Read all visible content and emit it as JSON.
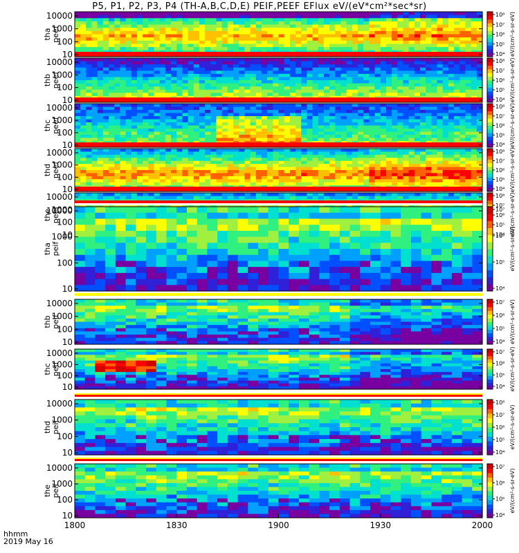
{
  "title": "P5, P1, P2, P3, P4 (TH-A,B,C,D,E) PEIF,PEEF EFlux eV/(eV*cm²*sec*sr)",
  "footer": {
    "time_label": "hhmm",
    "date_label": "2019 May 16"
  },
  "colors": {
    "cmap": [
      "#ffffff",
      "#7800a0",
      "#3020d8",
      "#0050ff",
      "#00a0ff",
      "#00e0d0",
      "#30f080",
      "#a0f040",
      "#ffff00",
      "#ffc000",
      "#ff6000",
      "#ff0000",
      "#d00000"
    ],
    "separator_red": "#ff0000",
    "separator_yellow": "#ffff00"
  },
  "chart_data": {
    "type": "heatmap",
    "x_range": [
      "1800",
      "2000"
    ],
    "x_ticks": [
      "1800",
      "1830",
      "1900",
      "1930",
      "2000"
    ],
    "y_scale": "log",
    "panels": [
      {
        "probe": "tha",
        "product": "peef",
        "y_ticks": [
          "10",
          "100",
          "1000",
          "10000"
        ],
        "cbar_ticks": [
          "10⁴",
          "10⁵",
          "10⁶",
          "10⁷",
          "10⁸"
        ],
        "cbar_label": "eV/(cm²-s-sr-eV)"
      },
      {
        "probe": "thb",
        "product": "peef",
        "y_ticks": [
          "10",
          "100",
          "1000",
          "10000"
        ],
        "cbar_ticks": [
          "10⁴",
          "10⁵",
          "10⁶",
          "10⁷",
          "10⁸"
        ],
        "cbar_label": "eV/(cm²-s-sr-eV)"
      },
      {
        "probe": "thc",
        "product": "peef",
        "y_ticks": [
          "10",
          "100",
          "1000",
          "10000"
        ],
        "cbar_ticks": [
          "10⁴",
          "10⁵",
          "10⁶",
          "10⁷",
          "10⁸"
        ],
        "cbar_label": "eV/(cm²-s-sr-eV)"
      },
      {
        "probe": "thd",
        "product": "peef",
        "y_ticks": [
          "10",
          "100",
          "1000",
          "10000"
        ],
        "cbar_ticks": [
          "10⁴",
          "10⁵",
          "10⁶",
          "10⁷",
          "10⁸"
        ],
        "cbar_label": "eV/(cm²-s-sr-eV)"
      },
      {
        "probe": "the",
        "product": "peef",
        "y_ticks": [
          "10",
          "100",
          "1000",
          "10000"
        ],
        "cbar_ticks": [
          "10⁴",
          "10⁵",
          "10⁶",
          "10⁷",
          "10⁸"
        ],
        "cbar_label": "eV/(cm²-s-sr-eV)"
      },
      {
        "probe": "tha",
        "product": "peif",
        "y_ticks": [
          "10",
          "100",
          "1000",
          "10000"
        ],
        "cbar_ticks": [
          "10⁴",
          "10⁵",
          "10⁶",
          "10⁷"
        ],
        "cbar_label": "eV/(cm²-s-sr-eV)"
      },
      {
        "probe": "thb",
        "product": "peif",
        "y_ticks": [
          "10",
          "100",
          "1000",
          "10000"
        ],
        "cbar_ticks": [
          "10⁴",
          "10⁵",
          "10⁶",
          "10⁷"
        ],
        "cbar_label": "eV/(cm²-s-sr-eV)"
      },
      {
        "probe": "thc",
        "product": "peif",
        "y_ticks": [
          "10",
          "100",
          "1000",
          "10000"
        ],
        "cbar_ticks": [
          "10⁴",
          "10⁵",
          "10⁶",
          "10⁷"
        ],
        "cbar_label": "eV/(cm²-s-sr-eV)"
      },
      {
        "probe": "thd",
        "product": "peif",
        "y_ticks": [
          "10",
          "100",
          "1000",
          "10000"
        ],
        "cbar_ticks": [
          "10⁴",
          "10⁵",
          "10⁶",
          "10⁷",
          "10⁸"
        ],
        "cbar_label": "eV/(cm²-s-sr-eV)"
      },
      {
        "probe": "the",
        "product": "peif",
        "y_ticks": [
          "10",
          "100",
          "1000",
          "10000"
        ],
        "cbar_ticks": [
          "10⁴",
          "10⁵",
          "10⁶",
          "10⁷"
        ],
        "cbar_label": "eV/(cm²-s-sr-eV)"
      }
    ]
  }
}
